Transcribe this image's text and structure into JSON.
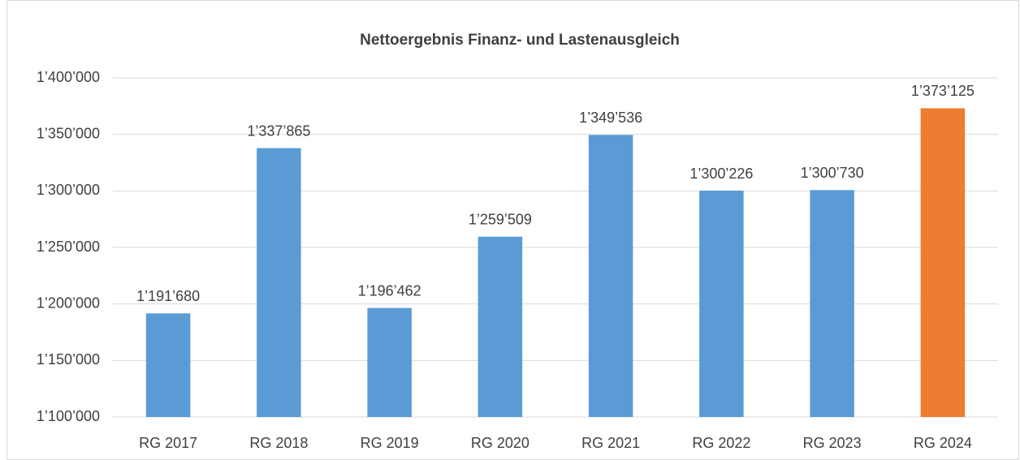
{
  "chart_data": {
    "type": "bar",
    "title": "Nettoergebnis Finanz- und Lastenausgleich",
    "categories": [
      "RG 2017",
      "RG 2018",
      "RG 2019",
      "RG 2020",
      "RG 2021",
      "RG 2022",
      "RG 2023",
      "RG 2024"
    ],
    "values": [
      1191680,
      1337865,
      1196462,
      1259509,
      1349536,
      1300226,
      1300730,
      1373125
    ],
    "value_labels": [
      "1’191’680",
      "1’337’865",
      "1’196’462",
      "1’259’509",
      "1’349’536",
      "1’300’226",
      "1’300’730",
      "1’373’125"
    ],
    "colors": [
      "#5b9bd5",
      "#5b9bd5",
      "#5b9bd5",
      "#5b9bd5",
      "#5b9bd5",
      "#5b9bd5",
      "#5b9bd5",
      "#ed7d31"
    ],
    "ylim": [
      1100000,
      1400000
    ],
    "yticks": [
      {
        "value": 1100000,
        "label": "1’100’000"
      },
      {
        "value": 1150000,
        "label": "1’150’000"
      },
      {
        "value": 1200000,
        "label": "1’200’000"
      },
      {
        "value": 1250000,
        "label": "1’250’000"
      },
      {
        "value": 1300000,
        "label": "1’300’000"
      },
      {
        "value": 1350000,
        "label": "1’350’000"
      },
      {
        "value": 1400000,
        "label": "1’400’000"
      }
    ],
    "grid": true
  }
}
